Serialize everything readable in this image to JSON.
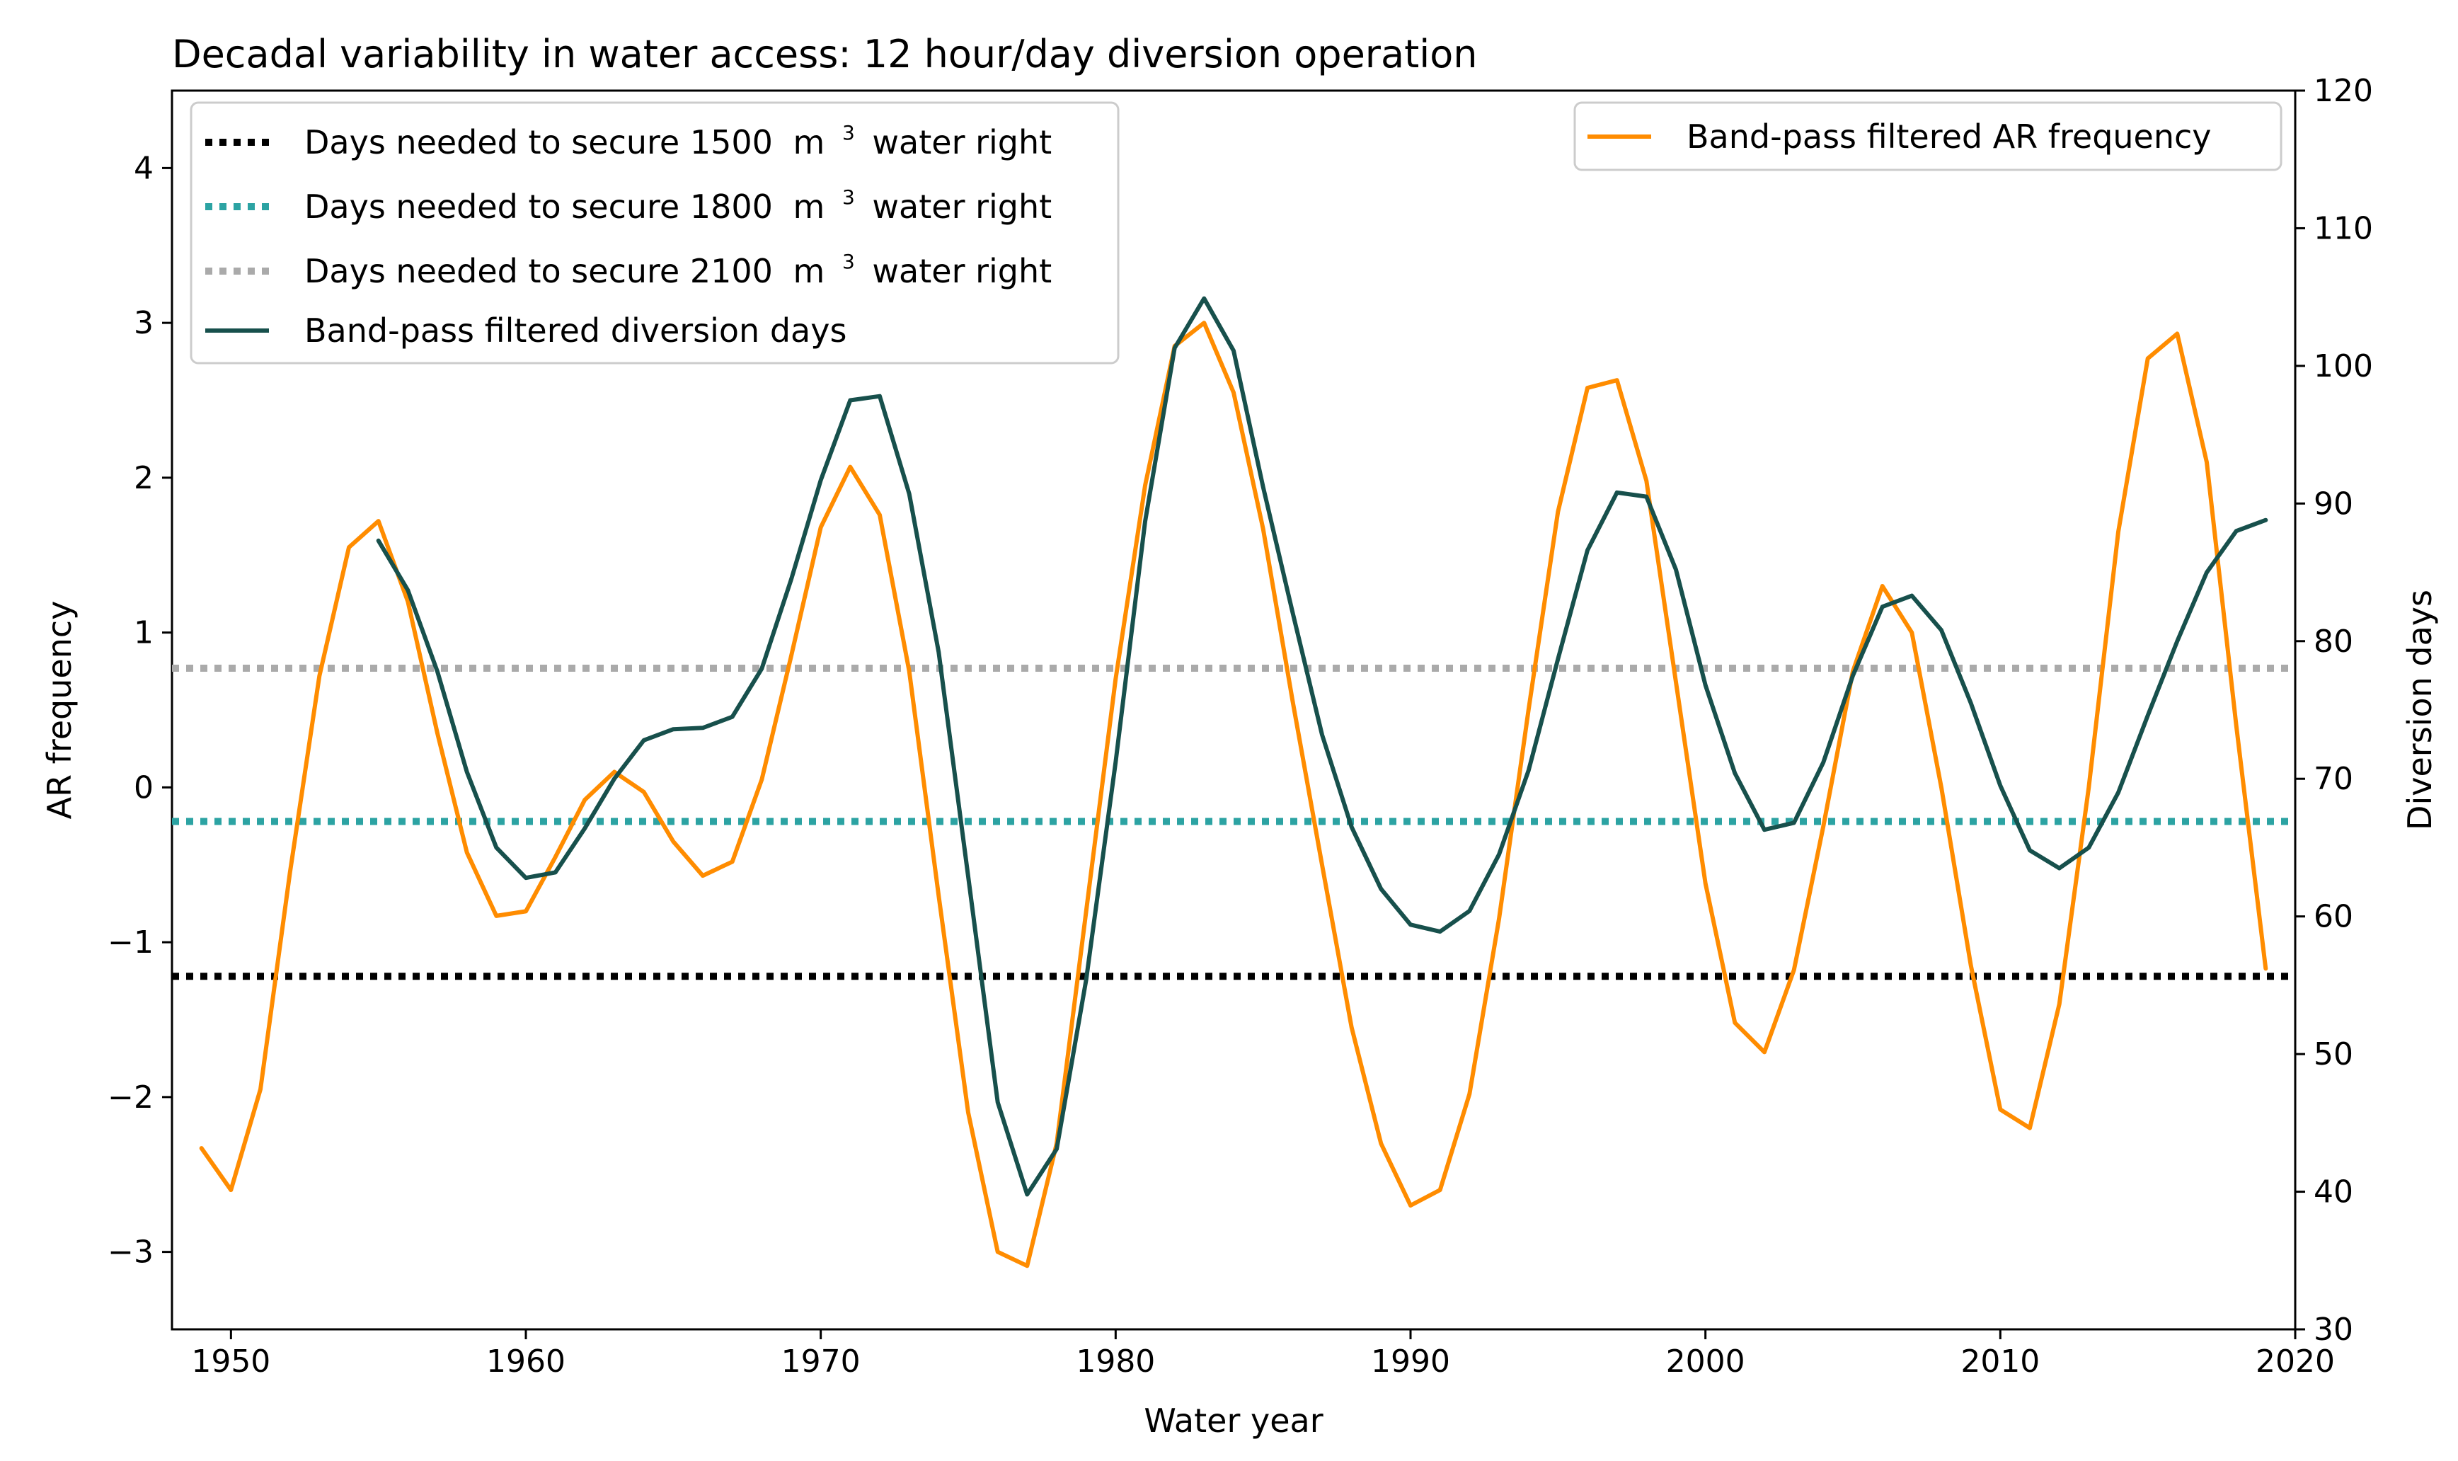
{
  "chart_data": {
    "type": "line",
    "title": "Decadal variability in water access: 12 hour/day diversion operation",
    "xlabel": "Water year",
    "ylabel_left": "AR frequency",
    "ylabel_right": "Diversion days",
    "xlim": [
      1948,
      2020
    ],
    "ylim_left": [
      -3.5,
      4.5
    ],
    "ylim_right": [
      30,
      120
    ],
    "x_ticks": [
      1950,
      1960,
      1970,
      1980,
      1990,
      2000,
      2010,
      2020
    ],
    "y_ticks_left": [
      -3,
      -2,
      -1,
      0,
      1,
      2,
      3,
      4
    ],
    "y_ticks_left_labels": [
      "−3",
      "−2",
      "−1",
      "0",
      "1",
      "2",
      "3",
      "4"
    ],
    "y_ticks_right": [
      30,
      40,
      50,
      60,
      70,
      80,
      90,
      100,
      110,
      120
    ],
    "grid": false,
    "left_legend": [
      {
        "name": "Days needed to secure 1500",
        "sup": "3",
        "unit": "m",
        "suffix": "water right",
        "style": "dotted",
        "color": "#000000"
      },
      {
        "name": "Days needed to secure 1800",
        "sup": "3",
        "unit": "m",
        "suffix": "water right",
        "style": "dotted",
        "color": "#2ca3a3"
      },
      {
        "name": "Days needed to secure 2100",
        "sup": "3",
        "unit": "m",
        "suffix": " water right",
        "style": "dotted",
        "color": "#aaaaaa"
      },
      {
        "name": "Band-pass filtered diversion days",
        "style": "solid",
        "color": "#17504c"
      }
    ],
    "right_legend": [
      {
        "name": "Band-pass filtered AR frequency",
        "style": "solid",
        "color": "#ff8c00"
      }
    ],
    "series": [
      {
        "name": "Band-pass filtered AR frequency",
        "axis": "left",
        "color": "#ff8c00",
        "x": [
          1949,
          1950,
          1951,
          1952,
          1953,
          1954,
          1955,
          1956,
          1957,
          1958,
          1959,
          1960,
          1961,
          1962,
          1963,
          1964,
          1965,
          1966,
          1967,
          1968,
          1969,
          1970,
          1971,
          1972,
          1973,
          1974,
          1975,
          1976,
          1977,
          1978,
          1979,
          1980,
          1981,
          1982,
          1983,
          1984,
          1985,
          1986,
          1987,
          1988,
          1989,
          1990,
          1991,
          1992,
          1993,
          1994,
          1995,
          1996,
          1997,
          1998,
          1999,
          2000,
          2001,
          2002,
          2003,
          2004,
          2005,
          2006,
          2007,
          2008,
          2009,
          2010,
          2011,
          2012,
          2013,
          2014,
          2015,
          2016,
          2017,
          2018,
          2019
        ],
        "values": [
          -2.33,
          -2.6,
          -1.95,
          -0.55,
          0.72,
          1.55,
          1.72,
          1.2,
          0.35,
          -0.42,
          -0.83,
          -0.8,
          -0.45,
          -0.08,
          0.1,
          -0.03,
          -0.35,
          -0.57,
          -0.48,
          0.05,
          0.85,
          1.68,
          2.07,
          1.76,
          0.75,
          -0.7,
          -2.1,
          -3.0,
          -3.09,
          -2.3,
          -0.8,
          0.7,
          1.95,
          2.85,
          3.0,
          2.55,
          1.67,
          0.56,
          -0.5,
          -1.55,
          -2.3,
          -2.7,
          -2.6,
          -1.98,
          -0.85,
          0.5,
          1.78,
          2.58,
          2.63,
          1.98,
          0.68,
          -0.62,
          -1.52,
          -1.71,
          -1.18,
          -0.25,
          0.75,
          1.3,
          1.0,
          0.0,
          -1.15,
          -2.08,
          -2.2,
          -1.4,
          0.0,
          1.65,
          2.77,
          2.93,
          2.1,
          0.4,
          -1.17
        ]
      },
      {
        "name": "Band-pass filtered diversion days",
        "axis": "right",
        "color": "#17504c",
        "x": [
          1955,
          1956,
          1957,
          1958,
          1959,
          1960,
          1961,
          1962,
          1963,
          1964,
          1965,
          1966,
          1967,
          1968,
          1969,
          1970,
          1971,
          1972,
          1973,
          1974,
          1975,
          1976,
          1977,
          1978,
          1979,
          1980,
          1981,
          1982,
          1983,
          1984,
          1985,
          1986,
          1987,
          1988,
          1989,
          1990,
          1991,
          1992,
          1993,
          1994,
          1995,
          1996,
          1997,
          1998,
          1999,
          2000,
          2001,
          2002,
          2003,
          2004,
          2005,
          2006,
          2007,
          2008,
          2009,
          2010,
          2011,
          2012,
          2013,
          2014,
          2015,
          2016,
          2017,
          2018,
          2019
        ],
        "values": [
          87.3,
          83.7,
          77.8,
          70.5,
          65.0,
          62.8,
          63.2,
          66.4,
          70.0,
          72.8,
          73.6,
          73.7,
          74.5,
          78.0,
          84.5,
          91.7,
          97.5,
          97.8,
          90.7,
          79.2,
          62.9,
          46.5,
          39.8,
          43.1,
          55.4,
          71.2,
          88.7,
          101.3,
          104.9,
          101.1,
          91.2,
          82.1,
          73.2,
          66.5,
          62.0,
          59.4,
          58.9,
          60.4,
          64.5,
          70.6,
          78.7,
          86.6,
          90.8,
          90.5,
          85.2,
          76.8,
          70.4,
          66.3,
          66.8,
          71.2,
          77.5,
          82.5,
          83.3,
          80.8,
          75.5,
          69.5,
          64.8,
          63.5,
          65.0,
          69.0,
          74.6,
          80.0,
          85.0,
          88.0,
          88.8
        ]
      }
    ],
    "threshold_lines": [
      {
        "name": "Days needed to secure 1500",
        "axis": "left",
        "value": -1.22,
        "color": "#000000"
      },
      {
        "name": "Days needed to secure 1800",
        "axis": "left",
        "value": -0.22,
        "color": "#2ca3a3"
      },
      {
        "name": "Days needed to secure 2100",
        "axis": "left",
        "value": 0.77,
        "color": "#aaaaaa"
      }
    ]
  }
}
